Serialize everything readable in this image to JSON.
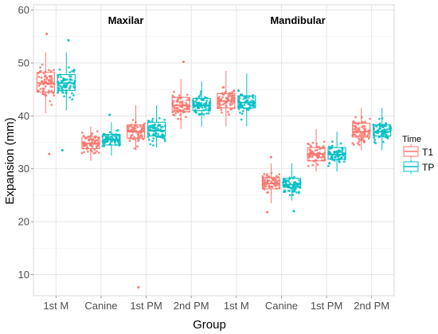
{
  "chart_data": {
    "type": "box",
    "xlabel": "Group",
    "ylabel": "Expansion (mm)",
    "ylim": [
      6,
      61
    ],
    "yticks": [
      10,
      20,
      30,
      40,
      50,
      60
    ],
    "grid": true,
    "legend": {
      "title": "Time",
      "position": "right"
    },
    "facet_labels": [
      "Maxilar",
      "Mandibular"
    ],
    "categories": [
      "1st M",
      "Canine",
      "1st PM",
      "2nd PM",
      "1st M",
      "Canine",
      "1st PM",
      "2nd PM"
    ],
    "series": [
      {
        "name": "T1",
        "color": "#F8766D",
        "boxes": [
          {
            "q1": 44.5,
            "median": 46.2,
            "q3": 48.2,
            "whisker_low": 40.5,
            "whisker_high": 52.0
          },
          {
            "q1": 33.8,
            "median": 34.8,
            "q3": 36.0,
            "whisker_low": 31.5,
            "whisker_high": 38.0
          },
          {
            "q1": 35.8,
            "median": 37.0,
            "q3": 38.3,
            "whisker_low": 33.5,
            "whisker_high": 42.0
          },
          {
            "q1": 40.8,
            "median": 42.0,
            "q3": 43.5,
            "whisker_low": 37.5,
            "whisker_high": 47.0
          },
          {
            "q1": 41.5,
            "median": 42.8,
            "q3": 44.2,
            "whisker_low": 38.0,
            "whisker_high": 48.5
          },
          {
            "q1": 26.2,
            "median": 27.2,
            "q3": 28.3,
            "whisker_low": 23.5,
            "whisker_high": 31.0
          },
          {
            "q1": 31.5,
            "median": 32.8,
            "q3": 34.0,
            "whisker_low": 29.5,
            "whisker_high": 37.5
          },
          {
            "q1": 36.0,
            "median": 37.0,
            "q3": 38.6,
            "whisker_low": 33.5,
            "whisker_high": 41.5
          }
        ],
        "outliers": [
          {
            "group": 0,
            "value": 55.5
          },
          {
            "group": 0,
            "value": 32.8
          },
          {
            "group": 2,
            "value": 7.6
          },
          {
            "group": 3,
            "value": 50.2
          },
          {
            "group": 5,
            "value": 21.8
          },
          {
            "group": 5,
            "value": 32.2
          }
        ]
      },
      {
        "name": "TP",
        "color": "#00BFC4",
        "boxes": [
          {
            "q1": 44.8,
            "median": 46.2,
            "q3": 47.8,
            "whisker_low": 41.0,
            "whisker_high": 52.0
          },
          {
            "q1": 34.5,
            "median": 35.5,
            "q3": 36.5,
            "whisker_low": 32.5,
            "whisker_high": 38.8
          },
          {
            "q1": 36.2,
            "median": 37.2,
            "q3": 38.8,
            "whisker_low": 34.0,
            "whisker_high": 42.0
          },
          {
            "q1": 41.0,
            "median": 42.0,
            "q3": 43.3,
            "whisker_low": 38.0,
            "whisker_high": 46.5
          },
          {
            "q1": 41.5,
            "median": 42.5,
            "q3": 43.8,
            "whisker_low": 38.0,
            "whisker_high": 48.0
          },
          {
            "q1": 26.5,
            "median": 27.0,
            "q3": 28.2,
            "whisker_low": 24.0,
            "whisker_high": 31.0
          },
          {
            "q1": 31.8,
            "median": 32.7,
            "q3": 34.0,
            "whisker_low": 29.5,
            "whisker_high": 37.0
          },
          {
            "q1": 36.2,
            "median": 37.0,
            "q3": 38.3,
            "whisker_low": 33.5,
            "whisker_high": 41.5
          }
        ],
        "outliers": [
          {
            "group": 0,
            "value": 54.3
          },
          {
            "group": 0,
            "value": 33.5
          },
          {
            "group": 1,
            "value": 40.2
          },
          {
            "group": 5,
            "value": 22.0
          }
        ]
      }
    ]
  }
}
